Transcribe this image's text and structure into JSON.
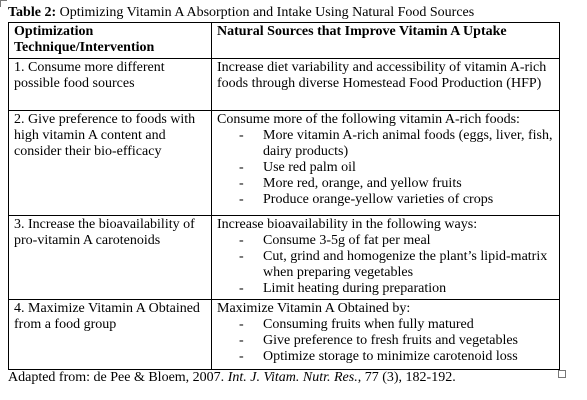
{
  "caption": {
    "label": "Table 2:",
    "text": "Optimizing Vitamin A Absorption and Intake Using Natural Food Sources"
  },
  "table": {
    "headers": [
      "Optimization Technique/Intervention",
      "Natural Sources that Improve Vitamin A Uptake"
    ],
    "rows": [
      {
        "technique": "1. Consume more different possible food sources",
        "intro": "Increase diet variability and accessibility of vitamin A-rich foods through diverse Homestead Food Production (HFP)",
        "bullets": []
      },
      {
        "technique": "2. Give preference to foods with high vitamin A content and consider their bio-efficacy",
        "intro": "Consume more of the following vitamin A-rich foods:",
        "bullets": [
          "More vitamin A-rich animal foods (eggs, liver, fish, dairy products)",
          "Use red palm oil",
          "More red, orange, and yellow fruits",
          "Produce orange-yellow varieties of crops"
        ]
      },
      {
        "technique": "3. Increase the bioavailability of pro-vitamin A carotenoids",
        "intro": "Increase bioavailability in the following ways:",
        "bullets": [
          "Consume 3-5g of fat per meal",
          "Cut, grind and homogenize the plant’s lipid-matrix when preparing vegetables",
          "Limit heating during preparation"
        ]
      },
      {
        "technique": "4. Maximize Vitamin A Obtained from a food group",
        "intro": "Maximize Vitamin A Obtained by:",
        "bullets": [
          "Consuming fruits when fully matured",
          "Give preference to fresh fruits and vegetables",
          "Optimize storage to minimize carotenoid loss"
        ]
      }
    ]
  },
  "footnote": {
    "source": "Adapted from: de Pee & Bloem, 2007.",
    "journal": "Int. J. Vitam. Nutr. Res.",
    "details": ", 77 (3), 182-192."
  }
}
